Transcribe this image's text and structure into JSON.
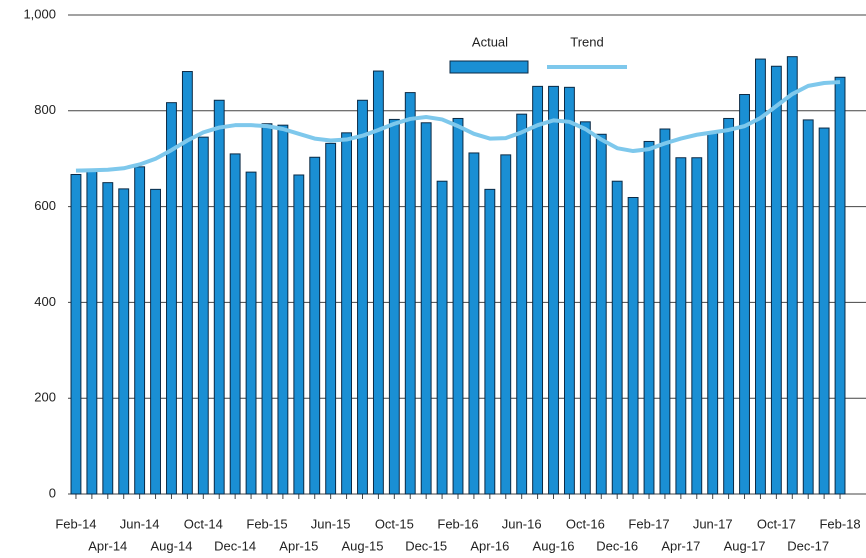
{
  "chart_data": {
    "type": "bar",
    "categories": [
      "Feb-14",
      null,
      "Apr-14",
      null,
      "Jun-14",
      null,
      "Aug-14",
      null,
      "Oct-14",
      null,
      "Dec-14",
      null,
      "Feb-15",
      null,
      "Apr-15",
      null,
      "Jun-15",
      null,
      "Aug-15",
      null,
      "Oct-15",
      null,
      "Dec-15",
      null,
      "Feb-16",
      null,
      "Apr-16",
      null,
      "Jun-16",
      null,
      "Aug-16",
      null,
      "Oct-16",
      null,
      "Dec-16",
      null,
      "Feb-17",
      null,
      "Apr-17",
      null,
      "Jun-17",
      null,
      "Aug-17",
      null,
      "Oct-17",
      null,
      "Dec-17",
      null,
      "Feb-18"
    ],
    "series": [
      {
        "name": "Actual",
        "type": "bar",
        "color": "#1a8fd4",
        "values": [
          667,
          675,
          650,
          637,
          683,
          636,
          817,
          882,
          745,
          822,
          710,
          672,
          773,
          770,
          666,
          703,
          732,
          754,
          822,
          883,
          782,
          838,
          775,
          653,
          784,
          712,
          636,
          708,
          793,
          851,
          851,
          849,
          777,
          751,
          653,
          619,
          736,
          762,
          702,
          702,
          753,
          784,
          834,
          908,
          893,
          913,
          781,
          764,
          870
        ]
      },
      {
        "name": "Trend",
        "type": "line",
        "color": "#7ec8ec",
        "values": [
          675,
          676,
          677,
          680,
          688,
          700,
          718,
          738,
          755,
          765,
          770,
          770,
          768,
          762,
          752,
          742,
          738,
          740,
          748,
          760,
          773,
          783,
          787,
          782,
          768,
          752,
          742,
          743,
          755,
          770,
          780,
          777,
          762,
          740,
          722,
          716,
          720,
          732,
          742,
          750,
          755,
          760,
          768,
          785,
          810,
          835,
          852,
          858,
          860
        ]
      }
    ],
    "ylim": [
      0,
      1000
    ],
    "yticks": [
      0,
      200,
      400,
      600,
      800,
      {
        "value": 1000,
        "label": "1,000"
      }
    ],
    "grid": true,
    "legend": "top"
  }
}
